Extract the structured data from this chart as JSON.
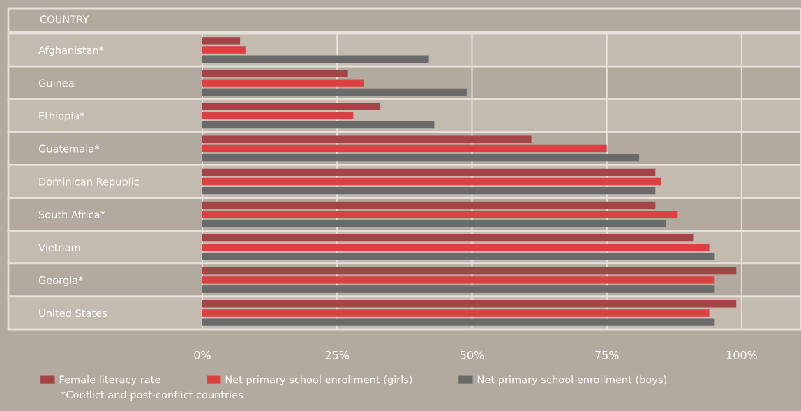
{
  "chart_data": {
    "type": "bar",
    "orientation": "horizontal",
    "ylabel": "COUNTRY",
    "categories": [
      "Afghanistan*",
      "Guinea",
      "Ethiopia*",
      "Guatemala*",
      "Dominican Republic",
      "South Africa*",
      "Vietnam",
      "Georgia*",
      "United States"
    ],
    "series": [
      {
        "name": "Female literacy rate",
        "color": "#a44446",
        "values": [
          7,
          27,
          33,
          61,
          84,
          84,
          91,
          99,
          99
        ]
      },
      {
        "name": "Net primary school enrollment (girls)",
        "color": "#dd4043",
        "values": [
          8,
          30,
          28,
          75,
          85,
          88,
          94,
          95,
          94
        ]
      },
      {
        "name": "Net primary school enrollment (boys)",
        "color": "#6a6a6a",
        "values": [
          42,
          49,
          43,
          81,
          84,
          86,
          95,
          95,
          95
        ]
      }
    ],
    "xlim": [
      0,
      100
    ],
    "xticks": [
      {
        "value": 0,
        "label": "0%"
      },
      {
        "value": 25,
        "label": "25%"
      },
      {
        "value": 50,
        "label": "50%"
      },
      {
        "value": 75,
        "label": "75%"
      },
      {
        "value": 100,
        "label": "100%"
      }
    ],
    "grid": "x",
    "legend": "bottom",
    "annotations": [
      "*Conflict and post-conflict countries"
    ]
  }
}
